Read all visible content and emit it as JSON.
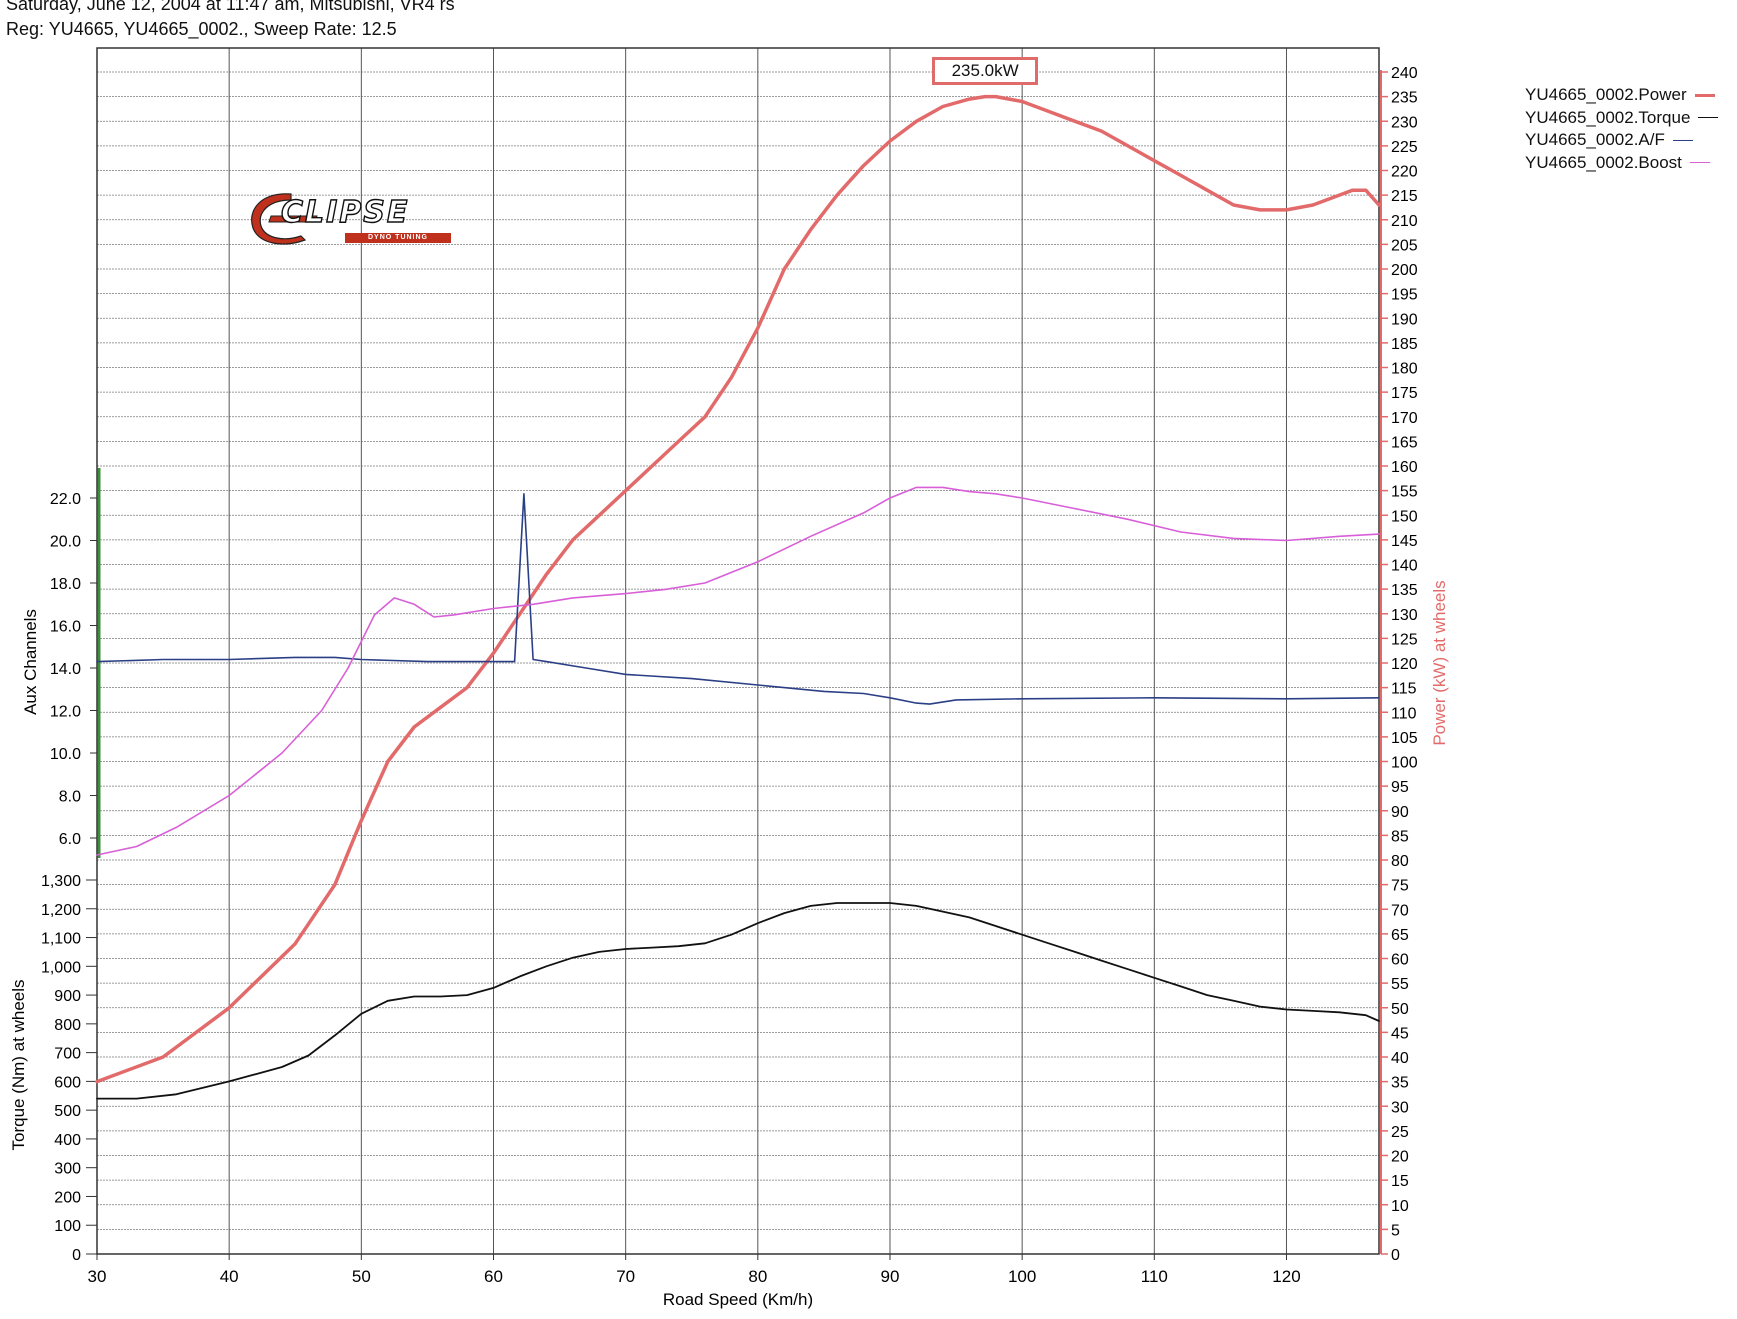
{
  "header": {
    "line1": "Saturday, June 12, 2004  at  11:47 am, Mitsubishi, VR4 rs",
    "line2": "Reg: YU4665, YU4665_0002.,  Sweep Rate: 12.5"
  },
  "logo": {
    "text": "CLIPSE",
    "subtext": "DYNO TUNING"
  },
  "chart_data": {
    "type": "line",
    "xlabel": "Road Speed (Km/h)",
    "xlim": [
      30,
      127
    ],
    "x_ticks": [
      30,
      40,
      50,
      60,
      70,
      80,
      90,
      100,
      110,
      120
    ],
    "axes": {
      "power": {
        "label": "Power (kW) at wheels",
        "range": [
          0,
          240
        ],
        "step": 5,
        "side": "right"
      },
      "aux": {
        "label": "Aux Channels",
        "range": [
          6,
          22
        ],
        "step": 2,
        "side": "left-upper",
        "ticks": [
          "22.0",
          "20.0",
          "18.0",
          "16.0",
          "14.0",
          "12.0",
          "10.0",
          "8.0",
          "6.0"
        ]
      },
      "torque": {
        "label": "Torque (Nm) at wheels",
        "range": [
          0,
          1300
        ],
        "step": 100,
        "side": "left-lower",
        "ticks": [
          "1,300",
          "1,200",
          "1,100",
          "1,000",
          "900",
          "800",
          "700",
          "600",
          "500",
          "400",
          "300",
          "200",
          "100",
          "0"
        ]
      }
    },
    "annotation": {
      "text": "235.0kW",
      "x": 97.2,
      "y": 235.0,
      "axis": "power"
    },
    "grid": true,
    "legend_position": "top-right",
    "series": [
      {
        "name": "YU4665_0002.Power",
        "axis": "power",
        "color": "#e26a6a",
        "x": [
          30,
          35,
          40,
          45,
          48,
          50,
          52,
          54,
          56,
          58,
          60,
          62,
          64,
          66,
          68,
          70,
          72,
          74,
          76,
          78,
          80,
          82,
          84,
          86,
          88,
          90,
          92,
          94,
          96,
          97.2,
          98,
          100,
          102,
          104,
          106,
          108,
          110,
          112,
          114,
          116,
          118,
          120,
          122,
          124,
          125,
          126,
          127
        ],
        "y": [
          35,
          40,
          50,
          63,
          75,
          88,
          100,
          107,
          111,
          115,
          122,
          130,
          138,
          145,
          150,
          155,
          160,
          165,
          170,
          178,
          188,
          200,
          208,
          215,
          221,
          226,
          230,
          233,
          234.5,
          235,
          235,
          234,
          232,
          230,
          228,
          225,
          222,
          219,
          216,
          213,
          212,
          212,
          213,
          215,
          216,
          216,
          213
        ]
      },
      {
        "name": "YU4665_0002.Torque",
        "axis": "torque",
        "color": "#111111",
        "x": [
          30,
          33,
          36,
          40,
          44,
          46,
          48,
          50,
          52,
          54,
          56,
          58,
          60,
          62,
          64,
          66,
          68,
          70,
          72,
          74,
          76,
          78,
          80,
          82,
          84,
          86,
          88,
          90,
          92,
          94,
          96,
          98,
          100,
          102,
          104,
          106,
          108,
          110,
          112,
          114,
          116,
          118,
          120,
          122,
          124,
          126,
          127
        ],
        "y": [
          540,
          540,
          555,
          600,
          650,
          690,
          760,
          835,
          880,
          895,
          895,
          900,
          925,
          965,
          1000,
          1030,
          1050,
          1060,
          1065,
          1070,
          1080,
          1110,
          1150,
          1185,
          1210,
          1220,
          1220,
          1220,
          1210,
          1190,
          1170,
          1140,
          1110,
          1080,
          1050,
          1020,
          990,
          960,
          930,
          900,
          880,
          860,
          850,
          845,
          840,
          830,
          810
        ]
      },
      {
        "name": "YU4665_0002.A/F",
        "axis": "aux",
        "color": "#2b3f86",
        "x": [
          30,
          35,
          40,
          45,
          48,
          50,
          55,
          60,
          61.6,
          62.3,
          63,
          64,
          67,
          70,
          75,
          80,
          85,
          88,
          90,
          92,
          93,
          95,
          100,
          110,
          120,
          127
        ],
        "y": [
          14.3,
          14.4,
          14.4,
          14.5,
          14.5,
          14.4,
          14.3,
          14.3,
          14.3,
          22.2,
          14.4,
          14.3,
          14.0,
          13.7,
          13.5,
          13.2,
          12.9,
          12.8,
          12.6,
          12.35,
          12.3,
          12.5,
          12.55,
          12.6,
          12.55,
          12.6
        ]
      },
      {
        "name": "YU4665_0002.Boost",
        "axis": "aux",
        "color": "#d85fd8",
        "x": [
          30,
          33,
          36,
          40,
          44,
          47,
          49,
          51,
          52.5,
          54,
          55.5,
          57,
          60,
          63,
          66,
          70,
          73,
          76,
          80,
          84,
          88,
          90,
          92,
          94,
          96,
          98,
          100,
          104,
          108,
          112,
          116,
          120,
          124,
          127
        ],
        "y": [
          5.2,
          5.6,
          6.5,
          8.0,
          10.0,
          12.0,
          14.0,
          16.5,
          17.3,
          17.0,
          16.4,
          16.5,
          16.8,
          17.0,
          17.3,
          17.5,
          17.7,
          18.0,
          19.0,
          20.2,
          21.3,
          22.0,
          22.5,
          22.5,
          22.3,
          22.2,
          22.0,
          21.5,
          21.0,
          20.4,
          20.1,
          20.0,
          20.2,
          20.3
        ]
      }
    ]
  }
}
